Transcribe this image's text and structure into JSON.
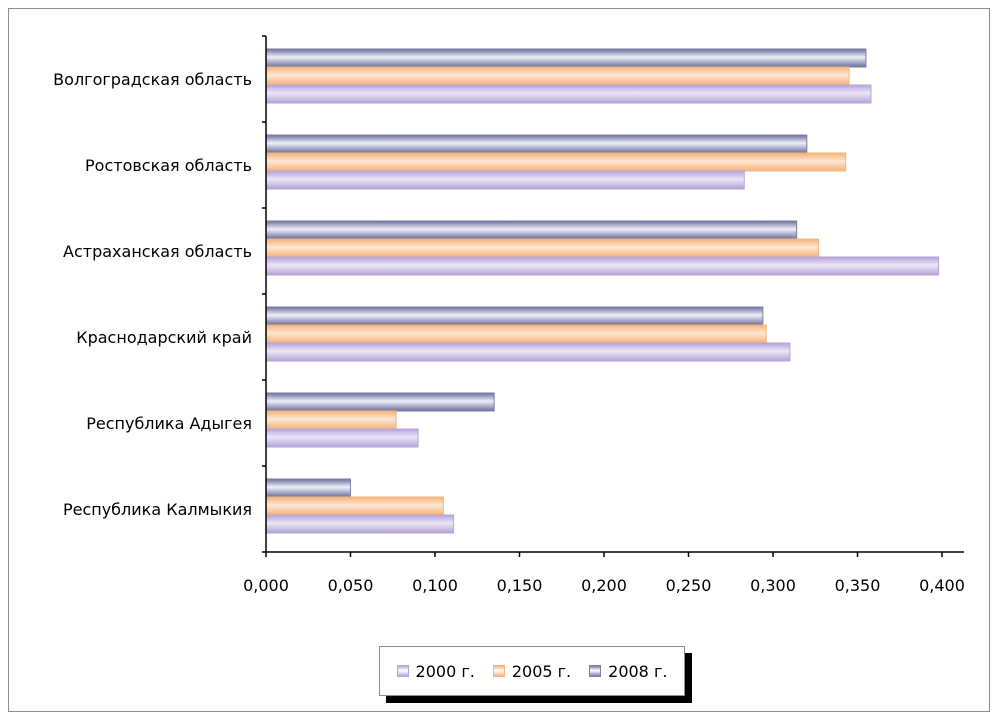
{
  "chart_data": {
    "type": "bar",
    "orientation": "horizontal",
    "categories": [
      "Волгоградская область",
      "Ростовская область",
      "Астраханская область",
      "Краснодарский край",
      "Республика Адыгея",
      "Республика Калмыкия"
    ],
    "series": [
      {
        "name": "2008 г.",
        "color": "#7b7fa8",
        "values": [
          0.355,
          0.32,
          0.314,
          0.294,
          0.135,
          0.05
        ]
      },
      {
        "name": "2005 г.",
        "color": "#f5b57f",
        "values": [
          0.345,
          0.343,
          0.327,
          0.296,
          0.077,
          0.105
        ]
      },
      {
        "name": "2000 г.",
        "color": "#b7a6d9",
        "values": [
          0.358,
          0.283,
          0.398,
          0.31,
          0.09,
          0.111
        ]
      }
    ],
    "legend_order": [
      "2000 г.",
      "2005 г.",
      "2008 г."
    ],
    "x_ticks": [
      "0,000",
      "0,050",
      "0,100",
      "0,150",
      "0,200",
      "0,250",
      "0,300",
      "0,350",
      "0,400"
    ],
    "xlim": [
      0,
      0.4
    ],
    "title": "",
    "xlabel": "",
    "ylabel": "",
    "grid": false,
    "legend_position": "bottom"
  }
}
